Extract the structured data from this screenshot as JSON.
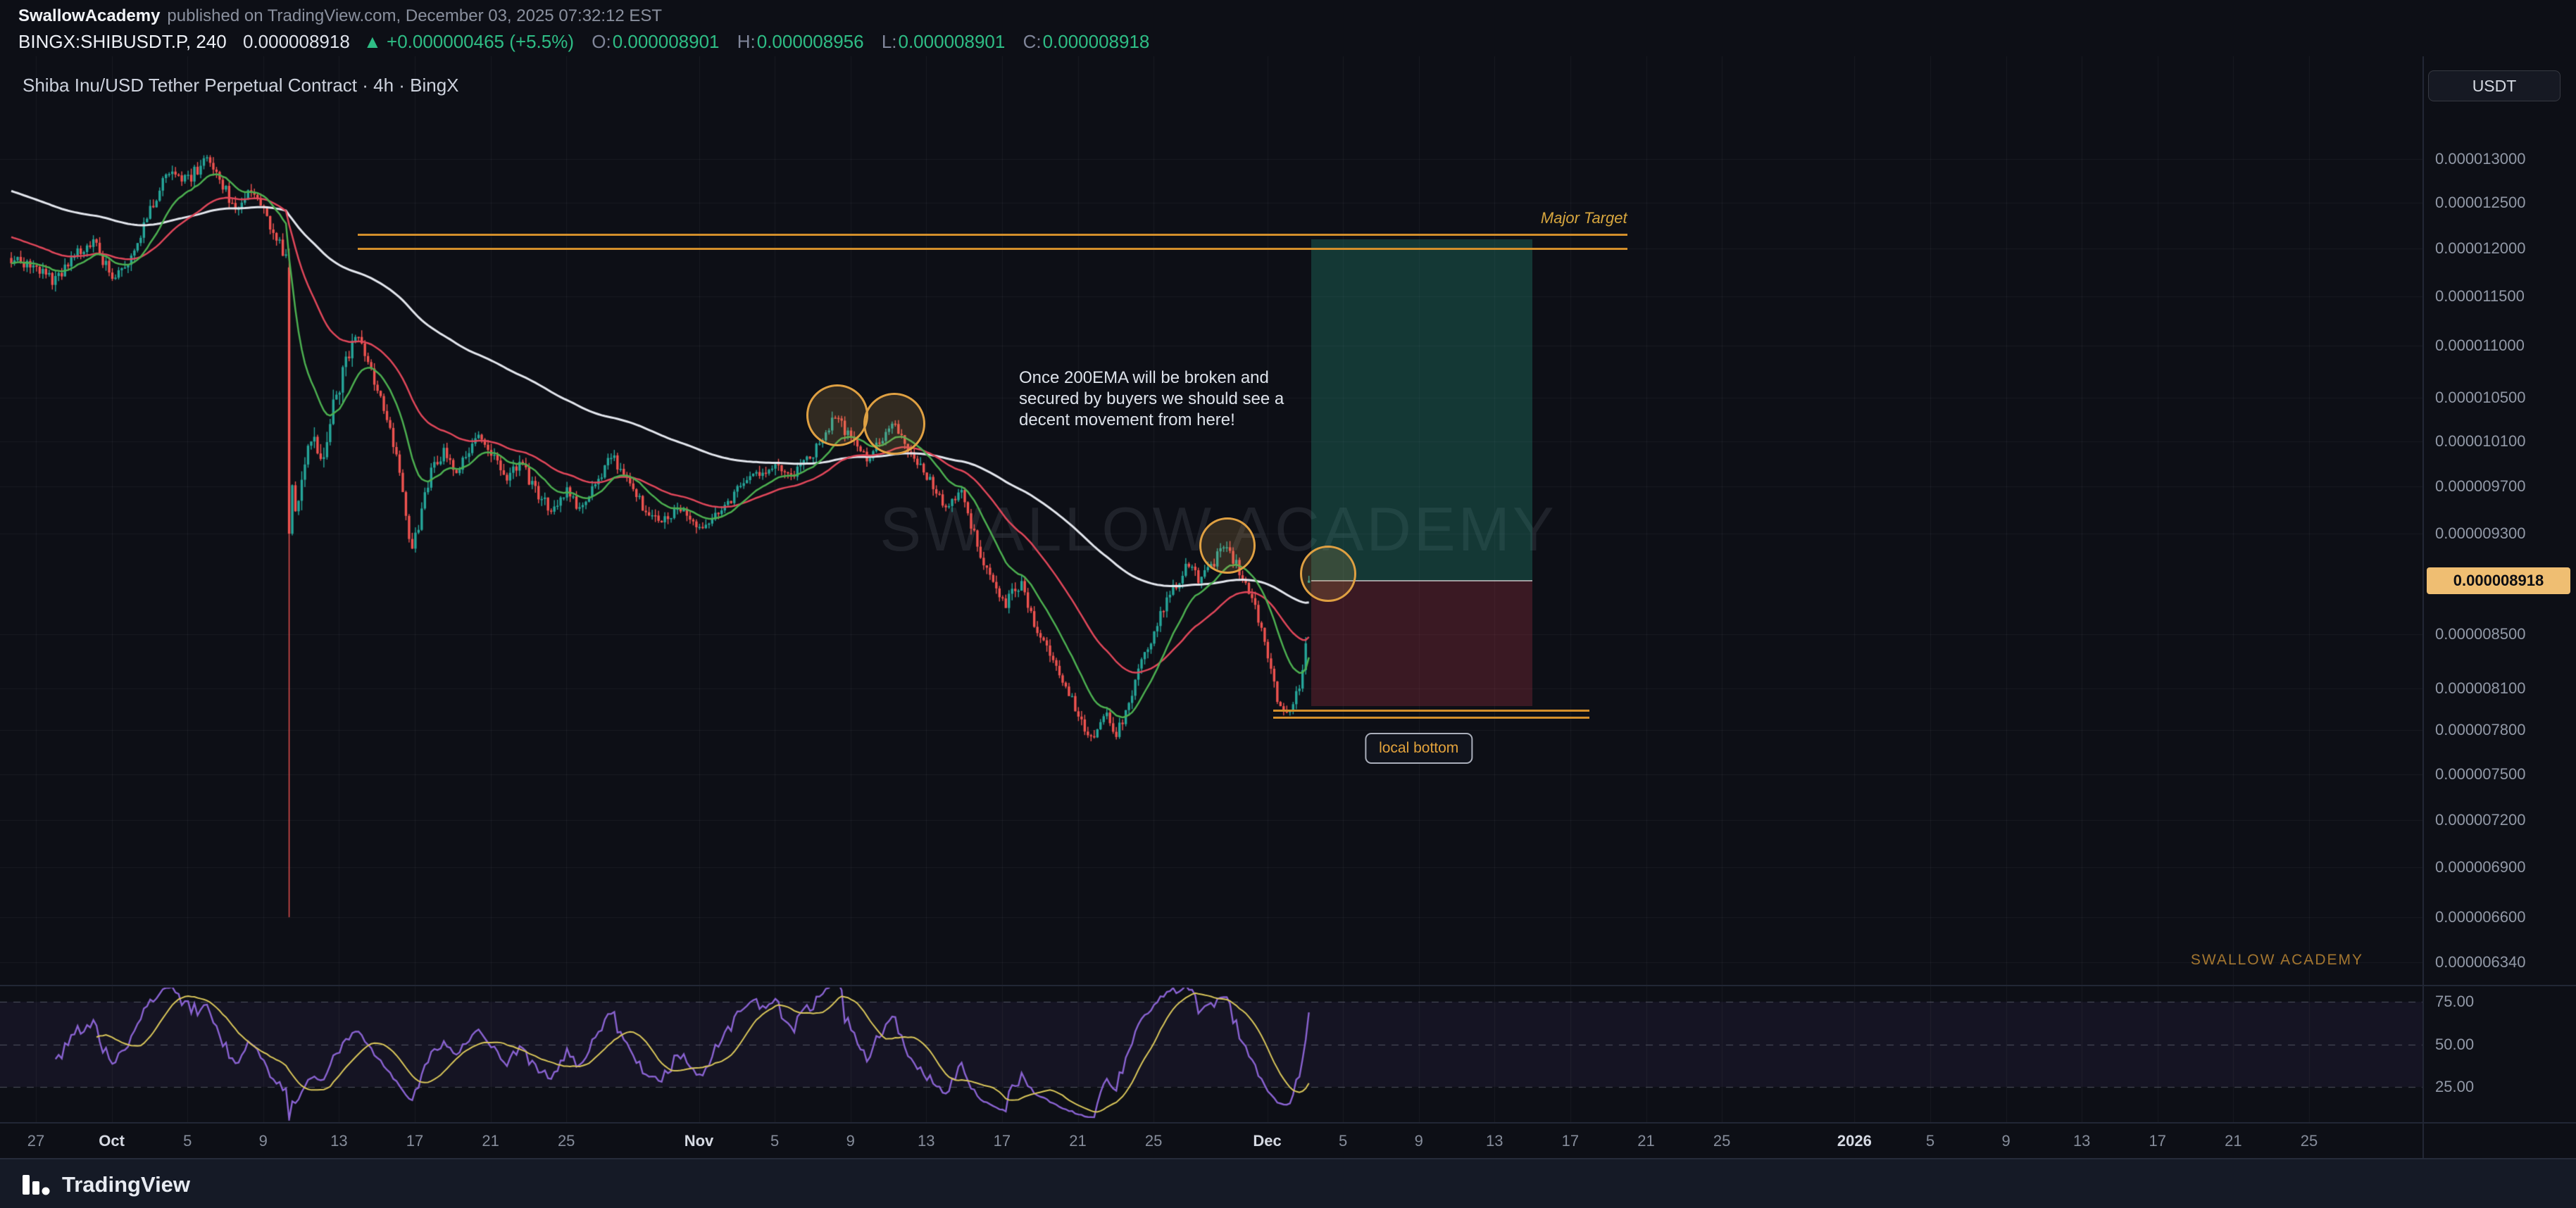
{
  "header": {
    "publisher": "SwallowAcademy",
    "published_info": "published on TradingView.com, December 03, 2025 07:32:12 EST",
    "symbol_interval": "BINGX:SHIBUSDT.P, 240",
    "last_price": "0.000008918",
    "change": "▲ +0.000000465 (+5.5%)",
    "ohlc": [
      {
        "label": "O:",
        "value": "0.000008901"
      },
      {
        "label": "H:",
        "value": "0.000008956"
      },
      {
        "label": "L:",
        "value": "0.000008901"
      },
      {
        "label": "C:",
        "value": "0.000008918"
      }
    ]
  },
  "chart": {
    "legend": "Shiba Inu/USD Tether Perpetual Contract · 4h · BingX",
    "currency_button": "USDT",
    "watermark": "SWALLOW ACADEMY",
    "academy_tag": "SWALLOW ACADEMY",
    "annotation": {
      "line1": "Once 200EMA will be broken and",
      "line2": "secured by buyers we should see a",
      "line3": "decent movement from here!"
    },
    "major_target_label": "Major Target",
    "local_bottom_label": "local bottom"
  },
  "price_axis": {
    "labels": [
      "0.000013000",
      "0.000012500",
      "0.000012000",
      "0.000011500",
      "0.000011000",
      "0.000010500",
      "0.000010100",
      "0.000009700",
      "0.000009300",
      "0.000008500",
      "0.000008100",
      "0.000007800",
      "0.000007500",
      "0.000007200",
      "0.000006900",
      "0.000006600",
      "0.000006340"
    ],
    "badge": "0.000008918",
    "badge_value": 8.918e-06
  },
  "rsi_axis": {
    "labels": [
      "75.00",
      "50.00",
      "25.00"
    ],
    "values": [
      75,
      50,
      25
    ]
  },
  "time_axis": {
    "ticks": [
      {
        "label": "27",
        "day": 0
      },
      {
        "label": "Oct",
        "day": 4,
        "major": true
      },
      {
        "label": "5",
        "day": 8
      },
      {
        "label": "9",
        "day": 12
      },
      {
        "label": "13",
        "day": 16
      },
      {
        "label": "17",
        "day": 20
      },
      {
        "label": "21",
        "day": 24
      },
      {
        "label": "25",
        "day": 28
      },
      {
        "label": "Nov",
        "day": 35,
        "major": true
      },
      {
        "label": "5",
        "day": 39
      },
      {
        "label": "9",
        "day": 43
      },
      {
        "label": "13",
        "day": 47
      },
      {
        "label": "17",
        "day": 51
      },
      {
        "label": "21",
        "day": 55
      },
      {
        "label": "25",
        "day": 59
      },
      {
        "label": "Dec",
        "day": 65,
        "major": true
      },
      {
        "label": "5",
        "day": 69
      },
      {
        "label": "9",
        "day": 73
      },
      {
        "label": "13",
        "day": 77
      },
      {
        "label": "17",
        "day": 81
      },
      {
        "label": "21",
        "day": 85
      },
      {
        "label": "25",
        "day": 89
      },
      {
        "label": "2026",
        "day": 96,
        "major": true
      },
      {
        "label": "5",
        "day": 100
      },
      {
        "label": "9",
        "day": 104
      },
      {
        "label": "13",
        "day": 108
      },
      {
        "label": "17",
        "day": 112
      },
      {
        "label": "21",
        "day": 116
      },
      {
        "label": "25",
        "day": 120
      }
    ]
  },
  "footer": {
    "brand": "TradingView"
  },
  "colors": {
    "up": "#26a69a",
    "down": "#ef5350",
    "ema_white": "#e4e7ee",
    "ema_red": "#e0475a",
    "ema_green": "#4caf50",
    "drawing_orange": "#d28e2b",
    "rsi": "#8a63d2",
    "rsi_ma": "#d9c65a",
    "badge_bg": "#efbe72",
    "grid": "rgba(140,146,160,0.09)"
  },
  "chart_data": {
    "type": "candlestick",
    "title": "Shiba Inu/USD Tether Perpetual Contract · 4h · BingX",
    "symbol": "BINGX:SHIBUSDT.P",
    "interval_minutes": 240,
    "scale": "logarithmic",
    "visible_price_range": [
      6.34e-06,
      1.3e-05
    ],
    "visible_time_range": [
      "Sep 27",
      "Jan 25 (2026)"
    ],
    "current_bar": {
      "open": 8.901e-06,
      "high": 8.956e-06,
      "low": 8.901e-06,
      "close": 8.918e-06
    },
    "t_start": -1.3,
    "t_end": 67.33,
    "price_path_anchors": [
      [
        -1.3,
        1.19e-05
      ],
      [
        0,
        1.18e-05
      ],
      [
        1,
        1.165e-05
      ],
      [
        2,
        1.19e-05
      ],
      [
        3,
        1.21e-05
      ],
      [
        4,
        1.17e-05
      ],
      [
        5,
        1.19e-05
      ],
      [
        6,
        1.24e-05
      ],
      [
        7,
        1.29e-05
      ],
      [
        8,
        1.275e-05
      ],
      [
        9,
        1.3e-05
      ],
      [
        9.5,
        1.288e-05
      ],
      [
        10.5,
        1.242e-05
      ],
      [
        11.5,
        1.265e-05
      ],
      [
        12.5,
        1.215e-05
      ],
      [
        13.3,
        1.19e-05
      ],
      [
        13.45,
        1.185e-05
      ],
      [
        13.55,
        9.3e-06
      ],
      [
        14,
        9.8e-06
      ],
      [
        14.5,
        1.02e-05
      ],
      [
        15,
        9.9e-06
      ],
      [
        15.7,
        1.04e-05
      ],
      [
        16.5,
        1.09e-05
      ],
      [
        17,
        1.115e-05
      ],
      [
        17.4,
        1.09e-05
      ],
      [
        18,
        1.06e-05
      ],
      [
        18.6,
        1.03e-05
      ],
      [
        19.2,
        9.8e-06
      ],
      [
        19.8,
        9.2e-06
      ],
      [
        20.2,
        9.35e-06
      ],
      [
        20.8,
        9.8e-06
      ],
      [
        21.5,
        1e-05
      ],
      [
        22.3,
        9.85e-06
      ],
      [
        23.2,
        1.015e-05
      ],
      [
        24,
        1e-05
      ],
      [
        24.8,
        9.75e-06
      ],
      [
        25.6,
        9.9e-06
      ],
      [
        26.4,
        9.65e-06
      ],
      [
        27.2,
        9.5e-06
      ],
      [
        28,
        9.65e-06
      ],
      [
        28.8,
        9.5e-06
      ],
      [
        29.6,
        9.75e-06
      ],
      [
        30.4,
        9.95e-06
      ],
      [
        31.2,
        9.8e-06
      ],
      [
        32,
        9.55e-06
      ],
      [
        33,
        9.4e-06
      ],
      [
        34,
        9.5e-06
      ],
      [
        35,
        9.3e-06
      ],
      [
        36,
        9.5e-06
      ],
      [
        37,
        9.65e-06
      ],
      [
        38,
        9.8e-06
      ],
      [
        39,
        9.9e-06
      ],
      [
        40,
        9.8e-06
      ],
      [
        41,
        1e-05
      ],
      [
        42.3,
        1.033e-05
      ],
      [
        43,
        1.012e-05
      ],
      [
        44,
        9.95e-06
      ],
      [
        45.2,
        1.028e-05
      ],
      [
        46,
        1.005e-05
      ],
      [
        47,
        9.8e-06
      ],
      [
        48,
        9.5e-06
      ],
      [
        48.8,
        9.68e-06
      ],
      [
        49.6,
        9.25e-06
      ],
      [
        50.4,
        8.95e-06
      ],
      [
        51.2,
        8.75e-06
      ],
      [
        52,
        8.9e-06
      ],
      [
        52.8,
        8.55e-06
      ],
      [
        53.6,
        8.35e-06
      ],
      [
        54.4,
        8.1e-06
      ],
      [
        55.2,
        7.85e-06
      ],
      [
        55.8,
        7.72e-06
      ],
      [
        56.4,
        7.95e-06
      ],
      [
        57,
        7.73e-06
      ],
      [
        57.6,
        7.98e-06
      ],
      [
        58.4,
        8.3e-06
      ],
      [
        59.2,
        8.6e-06
      ],
      [
        60,
        8.85e-06
      ],
      [
        60.8,
        9.05e-06
      ],
      [
        61.5,
        8.92e-06
      ],
      [
        62.2,
        9.08e-06
      ],
      [
        62.9,
        9.19e-06
      ],
      [
        63.6,
        8.98e-06
      ],
      [
        64.3,
        8.75e-06
      ],
      [
        65,
        8.35e-06
      ],
      [
        65.5,
        8.05e-06
      ],
      [
        66,
        7.95e-06
      ],
      [
        66.5,
        8.02e-06
      ],
      [
        66.9,
        8.25e-06
      ],
      [
        67.15,
        8.6e-06
      ],
      [
        67.3,
        8.9e-06
      ],
      [
        67.33,
        8.918e-06
      ]
    ],
    "crash_candle": {
      "t": 13.5,
      "open": 1.18e-05,
      "high": 1.2e-05,
      "low": 6.6e-06,
      "close": 9.3e-06
    },
    "emas": [
      {
        "name": "200 EMA",
        "period": 120,
        "color_key": "ema_white",
        "init_mult": 1.068,
        "width": 3
      },
      {
        "name": "50 EMA",
        "period": 40,
        "color_key": "ema_red",
        "init_mult": 1.025,
        "width": 2.5
      },
      {
        "name": "20 EMA",
        "period": 15,
        "color_key": "ema_green",
        "init_mult": 1.0,
        "width": 2.5
      }
    ],
    "rsi": {
      "period": 14,
      "ma_period": 14,
      "levels": [
        75,
        50,
        25
      ]
    },
    "long_position_tool": {
      "entry": 8.918e-06,
      "target": 1.21e-05,
      "stop": 7.97e-06,
      "t1": 67.33,
      "t2": 79
    },
    "target_rays": [
      {
        "price": 1.215e-05,
        "t1": 17,
        "t2": 84
      },
      {
        "price": 1.2e-05,
        "t1": 17,
        "t2": 84
      }
    ],
    "local_bottom_rays": [
      {
        "price": 7.94e-06,
        "t1": 65.3,
        "t2": 82
      },
      {
        "price": 7.89e-06,
        "t1": 65.3,
        "t2": 82
      }
    ],
    "local_bottom_label_t": 73,
    "ema_touch_circles": [
      {
        "t": 42.3,
        "price": 1.034e-05,
        "r": 44
      },
      {
        "t": 45.3,
        "price": 1.026e-05,
        "r": 44
      },
      {
        "t": 62.9,
        "price": 9.2e-06,
        "r": 40
      },
      {
        "t": 68.2,
        "price": 8.97e-06,
        "r": 40
      }
    ]
  }
}
